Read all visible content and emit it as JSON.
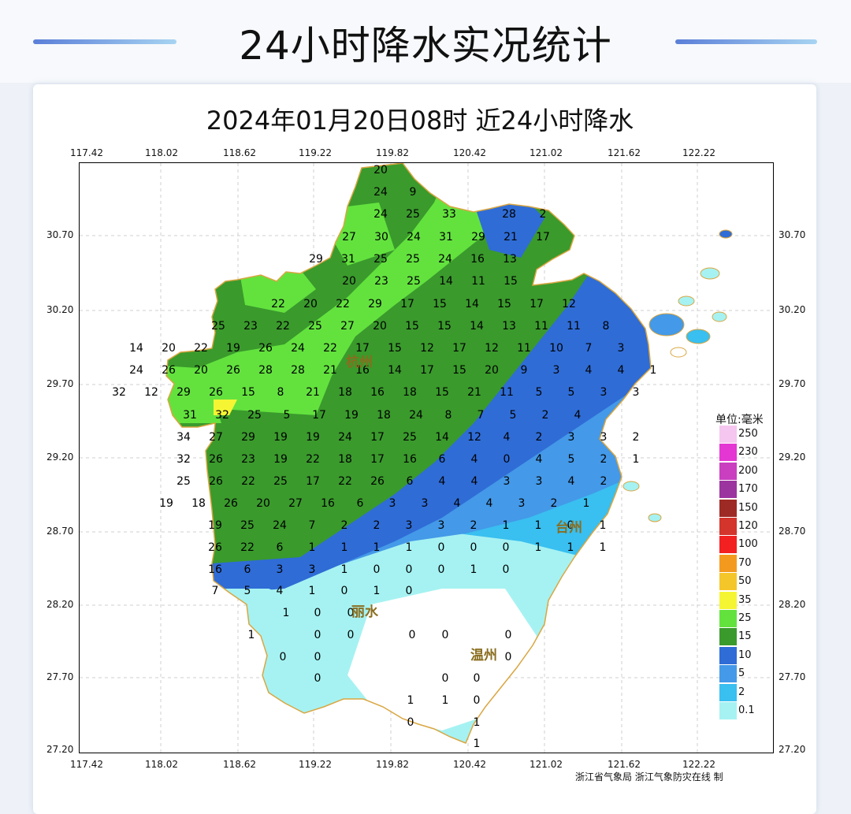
{
  "header": {
    "title": "24小时降水实况统计"
  },
  "map": {
    "title": "2024年01月20日08时  近24小时降水",
    "lon_ticks": [
      "117.42",
      "118.02",
      "118.62",
      "119.22",
      "119.82",
      "120.42",
      "121.02",
      "121.62",
      "122.22"
    ],
    "lat_ticks": [
      "30.70",
      "30.20",
      "29.70",
      "29.20",
      "28.70",
      "28.20",
      "27.70",
      "27.20"
    ],
    "cities": [
      {
        "name": "杭州",
        "label": "杭州"
      },
      {
        "name": "丽水",
        "label": "丽水"
      },
      {
        "name": "温州",
        "label": "温州"
      },
      {
        "name": "台州",
        "label": "台州"
      }
    ],
    "station_values": [
      [
        "20"
      ],
      [
        "24",
        "9"
      ],
      [
        "24",
        "25",
        "33",
        "28",
        "2"
      ],
      [
        "27",
        "30",
        "24",
        "31",
        "29",
        "21",
        "17"
      ],
      [
        "29",
        "31",
        "25",
        "25",
        "24",
        "16",
        "13"
      ],
      [
        "20",
        "23",
        "25",
        "14",
        "11",
        "15"
      ],
      [
        "22",
        "20",
        "22",
        "29",
        "17",
        "15",
        "14",
        "15",
        "17",
        "12"
      ],
      [
        "25",
        "23",
        "22",
        "25",
        "27",
        "20",
        "15",
        "15",
        "14",
        "13",
        "11",
        "11",
        "8"
      ],
      [
        "14",
        "20",
        "22",
        "19",
        "26",
        "24",
        "22",
        "17",
        "15",
        "12",
        "17",
        "12",
        "11",
        "10",
        "7",
        "3"
      ],
      [
        "24",
        "26",
        "20",
        "26",
        "28",
        "28",
        "21",
        "16",
        "14",
        "17",
        "15",
        "20",
        "9",
        "3",
        "4",
        "4",
        "1"
      ],
      [
        "32",
        "12",
        "29",
        "26",
        "15",
        "8",
        "21",
        "18",
        "16",
        "18",
        "15",
        "21",
        "11",
        "5",
        "5",
        "3",
        "3"
      ],
      [
        "31",
        "32",
        "25",
        "5",
        "17",
        "19",
        "18",
        "24",
        "8",
        "7",
        "5",
        "2",
        "4"
      ],
      [
        "34",
        "27",
        "29",
        "19",
        "19",
        "24",
        "17",
        "25",
        "14",
        "12",
        "4",
        "2",
        "3",
        "3",
        "2"
      ],
      [
        "32",
        "26",
        "23",
        "19",
        "22",
        "18",
        "17",
        "16",
        "6",
        "4",
        "0",
        "4",
        "5",
        "2",
        "1"
      ],
      [
        "25",
        "26",
        "22",
        "25",
        "17",
        "22",
        "26",
        "6",
        "4",
        "4",
        "3",
        "3",
        "4",
        "2"
      ],
      [
        "19",
        "18",
        "26",
        "20",
        "27",
        "16",
        "6",
        "3",
        "3",
        "4",
        "4",
        "3",
        "2",
        "1"
      ],
      [
        "19",
        "25",
        "24",
        "7",
        "2",
        "2",
        "3",
        "3",
        "2",
        "1",
        "1",
        "0",
        "1"
      ],
      [
        "26",
        "22",
        "6",
        "1",
        "1",
        "1",
        "1",
        "0",
        "0",
        "0",
        "1",
        "1",
        "1"
      ],
      [
        "16",
        "6",
        "3",
        "3",
        "1",
        "0",
        "0",
        "0",
        "1",
        "0"
      ],
      [
        "7",
        "5",
        "4",
        "1",
        "0",
        "1",
        "0"
      ],
      [
        "1",
        "0",
        "0"
      ],
      [
        "1",
        "0",
        "0",
        "0",
        "0",
        "0"
      ],
      [
        "0",
        "0",
        "0"
      ],
      [
        "0",
        "0",
        "0"
      ],
      [
        "1",
        "1",
        "0"
      ],
      [
        "0",
        "1"
      ],
      [
        "1"
      ]
    ]
  },
  "legend": {
    "title": "单位:毫米",
    "items": [
      {
        "label": "250",
        "color": "#f5c6ef"
      },
      {
        "label": "230",
        "color": "#e436d3"
      },
      {
        "label": "200",
        "color": "#c93fc0"
      },
      {
        "label": "170",
        "color": "#9c34a0"
      },
      {
        "label": "150",
        "color": "#9e2a25"
      },
      {
        "label": "120",
        "color": "#d3342b"
      },
      {
        "label": "100",
        "color": "#f22020"
      },
      {
        "label": "70",
        "color": "#f39a1e"
      },
      {
        "label": "50",
        "color": "#f5c62a"
      },
      {
        "label": "35",
        "color": "#f5f533"
      },
      {
        "label": "25",
        "color": "#63e23e"
      },
      {
        "label": "15",
        "color": "#3a9a2c"
      },
      {
        "label": "10",
        "color": "#2f6cd6"
      },
      {
        "label": "5",
        "color": "#4499e8"
      },
      {
        "label": "2",
        "color": "#39bff0"
      },
      {
        "label": "0.1",
        "color": "#a6f2f2"
      }
    ]
  },
  "credit": "浙江省气象局   浙江气象防灾在线 制"
}
